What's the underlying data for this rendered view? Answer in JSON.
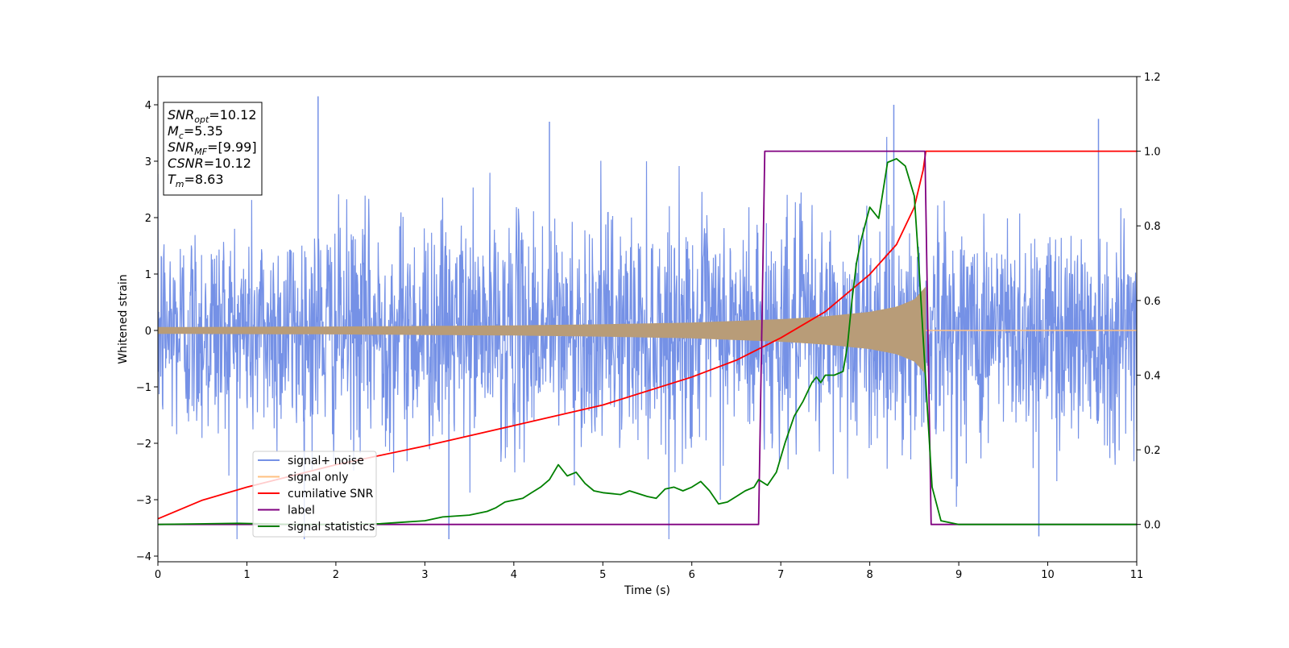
{
  "chart_data": {
    "type": "line",
    "xlabel": "Time (s)",
    "ylabel": "Whitened strain",
    "xlim": [
      0,
      11
    ],
    "ylim": [
      -4.1,
      4.5
    ],
    "y2lim": [
      -0.1,
      1.2
    ],
    "x_ticks": [
      "0",
      "1",
      "2",
      "3",
      "4",
      "5",
      "6",
      "7",
      "8",
      "9",
      "10",
      "11"
    ],
    "y_ticks": [
      "−4",
      "−3",
      "−2",
      "−1",
      "0",
      "1",
      "2",
      "3",
      "4"
    ],
    "y2_ticks": [
      "0.0",
      "0.2",
      "0.4",
      "0.6",
      "0.8",
      "1.0",
      "1.2"
    ],
    "grid": false,
    "legend_position": "lower-left",
    "annotation": {
      "lines": [
        {
          "base": "SNR",
          "sub": "opt",
          "value": "=10.12"
        },
        {
          "base": "M",
          "sub": "c",
          "value": "=5.35"
        },
        {
          "base": "SNR",
          "sub": "MF",
          "value": "=[9.99]"
        },
        {
          "base": "CSNR",
          "sub": "",
          "value": "=10.12"
        },
        {
          "base": "T",
          "sub": "m",
          "value": "=8.63"
        }
      ]
    },
    "series": [
      {
        "name": "signal+ noise",
        "axis": "left",
        "color": "#7591e6",
        "kind": "noise",
        "noise_sigma": 1.0,
        "approx_range": [
          -3.7,
          4.2
        ],
        "peaks": [
          [
            1.8,
            4.15
          ],
          [
            8.27,
            4.0
          ],
          [
            3.27,
            -3.7
          ],
          [
            9.9,
            -3.65
          ],
          [
            10.57,
            3.75
          ],
          [
            4.4,
            3.7
          ]
        ]
      },
      {
        "name": "signal only",
        "axis": "left",
        "color": "#ffc080",
        "kind": "chirp",
        "merger_time": 8.63,
        "envelope": [
          [
            0,
            0.06
          ],
          [
            2,
            0.07
          ],
          [
            4,
            0.09
          ],
          [
            5,
            0.11
          ],
          [
            6,
            0.14
          ],
          [
            7,
            0.2
          ],
          [
            7.5,
            0.25
          ],
          [
            8,
            0.33
          ],
          [
            8.3,
            0.42
          ],
          [
            8.5,
            0.55
          ],
          [
            8.63,
            0.78
          ]
        ]
      },
      {
        "name": "cumilative SNR",
        "axis": "right",
        "color": "#ff0000",
        "points": [
          [
            0,
            0.015
          ],
          [
            0.5,
            0.065
          ],
          [
            1,
            0.1
          ],
          [
            2,
            0.16
          ],
          [
            3,
            0.21
          ],
          [
            4,
            0.265
          ],
          [
            5,
            0.32
          ],
          [
            6,
            0.395
          ],
          [
            6.5,
            0.44
          ],
          [
            7,
            0.5
          ],
          [
            7.5,
            0.57
          ],
          [
            8,
            0.67
          ],
          [
            8.3,
            0.75
          ],
          [
            8.5,
            0.85
          ],
          [
            8.6,
            0.95
          ],
          [
            8.63,
            1.0
          ],
          [
            11,
            1.0
          ]
        ]
      },
      {
        "name": "label",
        "axis": "right",
        "color": "#800080",
        "points": [
          [
            0,
            0
          ],
          [
            6.75,
            0
          ],
          [
            6.82,
            1.0
          ],
          [
            8.62,
            1.0
          ],
          [
            8.69,
            0
          ],
          [
            11,
            0
          ]
        ]
      },
      {
        "name": "signal statistics",
        "axis": "right",
        "color": "#008000",
        "points": [
          [
            0,
            0.0
          ],
          [
            0.9,
            0.003
          ],
          [
            1.5,
            0.0
          ],
          [
            2,
            0.0
          ],
          [
            2.5,
            0.002
          ],
          [
            3,
            0.01
          ],
          [
            3.2,
            0.02
          ],
          [
            3.5,
            0.025
          ],
          [
            3.7,
            0.035
          ],
          [
            3.8,
            0.045
          ],
          [
            3.9,
            0.06
          ],
          [
            4.0,
            0.065
          ],
          [
            4.1,
            0.07
          ],
          [
            4.2,
            0.085
          ],
          [
            4.3,
            0.1
          ],
          [
            4.4,
            0.12
          ],
          [
            4.5,
            0.16
          ],
          [
            4.6,
            0.13
          ],
          [
            4.7,
            0.14
          ],
          [
            4.8,
            0.11
          ],
          [
            4.9,
            0.09
          ],
          [
            5.0,
            0.085
          ],
          [
            5.2,
            0.08
          ],
          [
            5.3,
            0.09
          ],
          [
            5.5,
            0.075
          ],
          [
            5.6,
            0.07
          ],
          [
            5.7,
            0.095
          ],
          [
            5.8,
            0.1
          ],
          [
            5.9,
            0.09
          ],
          [
            6.0,
            0.1
          ],
          [
            6.1,
            0.115
          ],
          [
            6.2,
            0.09
          ],
          [
            6.3,
            0.055
          ],
          [
            6.4,
            0.06
          ],
          [
            6.5,
            0.075
          ],
          [
            6.6,
            0.09
          ],
          [
            6.7,
            0.1
          ],
          [
            6.75,
            0.12
          ],
          [
            6.85,
            0.105
          ],
          [
            6.95,
            0.14
          ],
          [
            7.05,
            0.22
          ],
          [
            7.15,
            0.29
          ],
          [
            7.25,
            0.33
          ],
          [
            7.35,
            0.38
          ],
          [
            7.4,
            0.395
          ],
          [
            7.45,
            0.38
          ],
          [
            7.5,
            0.4
          ],
          [
            7.6,
            0.4
          ],
          [
            7.7,
            0.41
          ],
          [
            7.75,
            0.48
          ],
          [
            7.8,
            0.6
          ],
          [
            7.85,
            0.7
          ],
          [
            7.9,
            0.76
          ],
          [
            8.0,
            0.85
          ],
          [
            8.1,
            0.82
          ],
          [
            8.2,
            0.97
          ],
          [
            8.3,
            0.98
          ],
          [
            8.4,
            0.96
          ],
          [
            8.5,
            0.88
          ],
          [
            8.55,
            0.7
          ],
          [
            8.6,
            0.5
          ],
          [
            8.65,
            0.3
          ],
          [
            8.7,
            0.1
          ],
          [
            8.8,
            0.01
          ],
          [
            9.0,
            0.0
          ],
          [
            11,
            0.0
          ]
        ]
      }
    ]
  }
}
